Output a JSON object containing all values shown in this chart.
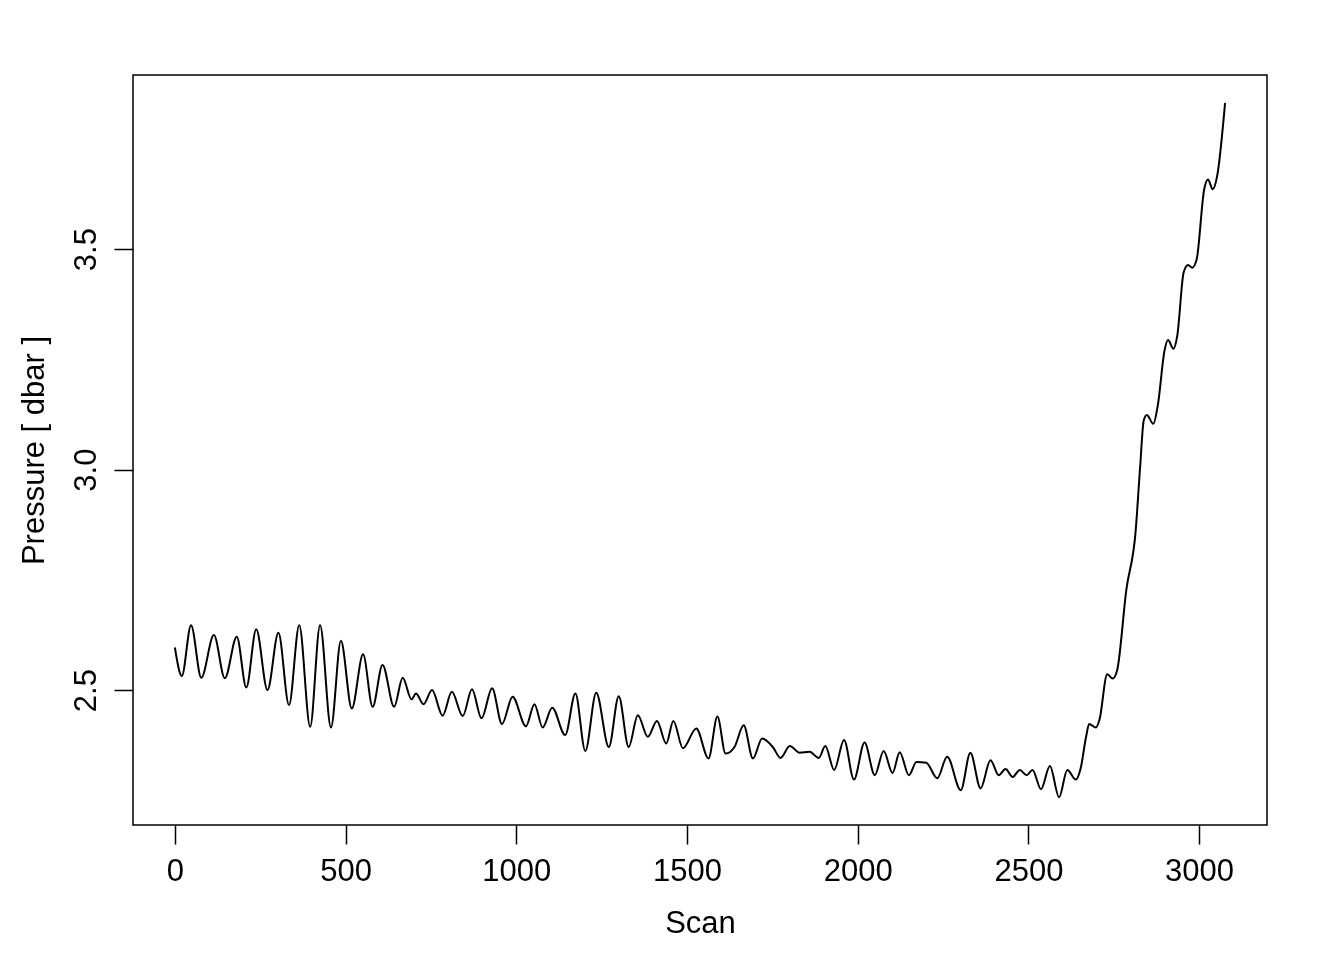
{
  "chart_data": {
    "type": "line",
    "xlabel": "Scan",
    "ylabel": "Pressure [ dbar ]",
    "line_style": "solid",
    "x": [
      0,
      20,
      47,
      77,
      114,
      146,
      181,
      209,
      238,
      271,
      303,
      334,
      364,
      396,
      425,
      457,
      486,
      518,
      551,
      579,
      608,
      642,
      667,
      693,
      706,
      728,
      753,
      784,
      811,
      843,
      870,
      898,
      929,
      958,
      989,
      1028,
      1053,
      1077,
      1105,
      1143,
      1173,
      1202,
      1234,
      1271,
      1300,
      1329,
      1356,
      1385,
      1412,
      1439,
      1460,
      1488,
      1527,
      1563,
      1589,
      1613,
      1639,
      1666,
      1693,
      1720,
      1752,
      1774,
      1801,
      1830,
      1859,
      1886,
      1905,
      1931,
      1960,
      1989,
      2020,
      2050,
      2076,
      2102,
      2123,
      2150,
      2172,
      2201,
      2233,
      2262,
      2302,
      2330,
      2360,
      2389,
      2413,
      2433,
      2454,
      2475,
      2495,
      2512,
      2537,
      2563,
      2590,
      2614,
      2639,
      2653,
      2669,
      2678,
      2698,
      2708,
      2731,
      2747,
      2760,
      2787,
      2814,
      2827,
      2838,
      2847,
      2866,
      2879,
      2899,
      2909,
      2925,
      2936,
      2955,
      2968,
      2980,
      2993,
      3015,
      3026,
      3040,
      3053,
      3076
    ],
    "series": [
      {
        "color": "#000000",
        "values": [
          2.595,
          2.532,
          2.647,
          2.528,
          2.625,
          2.527,
          2.621,
          2.506,
          2.638,
          2.5,
          2.63,
          2.466,
          2.647,
          2.417,
          2.647,
          2.415,
          2.612,
          2.458,
          2.581,
          2.462,
          2.557,
          2.462,
          2.528,
          2.479,
          2.492,
          2.468,
          2.5,
          2.442,
          2.496,
          2.441,
          2.502,
          2.436,
          2.504,
          2.423,
          2.485,
          2.418,
          2.468,
          2.415,
          2.46,
          2.398,
          2.492,
          2.362,
          2.494,
          2.371,
          2.486,
          2.371,
          2.443,
          2.394,
          2.43,
          2.379,
          2.43,
          2.368,
          2.413,
          2.345,
          2.44,
          2.356,
          2.371,
          2.42,
          2.345,
          2.39,
          2.37,
          2.346,
          2.373,
          2.358,
          2.36,
          2.346,
          2.373,
          2.319,
          2.387,
          2.297,
          2.381,
          2.307,
          2.362,
          2.312,
          2.359,
          2.307,
          2.337,
          2.335,
          2.3,
          2.349,
          2.273,
          2.358,
          2.277,
          2.341,
          2.307,
          2.321,
          2.303,
          2.319,
          2.307,
          2.319,
          2.275,
          2.328,
          2.257,
          2.319,
          2.297,
          2.322,
          2.394,
          2.423,
          2.415,
          2.432,
          2.536,
          2.526,
          2.545,
          2.728,
          2.859,
          3.002,
          3.112,
          3.124,
          3.104,
          3.145,
          3.271,
          3.294,
          3.274,
          3.303,
          3.448,
          3.464,
          3.458,
          3.477,
          3.636,
          3.658,
          3.636,
          3.666,
          3.83
        ]
      }
    ],
    "xlim": [
      -123,
      3199
    ],
    "ylim": [
      2.194,
      3.895
    ],
    "xticks": [
      0,
      500,
      1000,
      1500,
      2000,
      2500,
      3000
    ],
    "yticks": [
      2.5,
      {
        "value": 3,
        "label": "3.0"
      },
      3.5
    ]
  }
}
